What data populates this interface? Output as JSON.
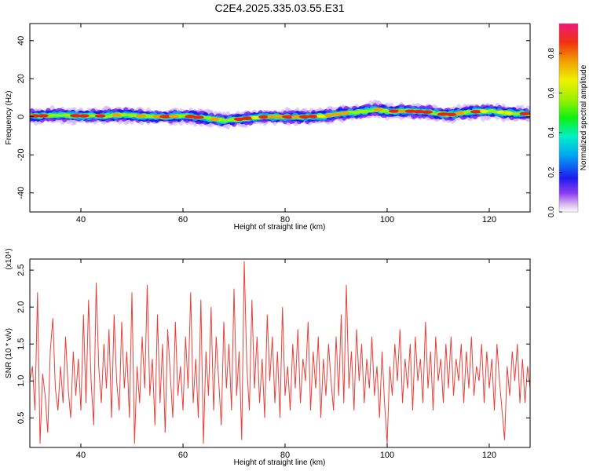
{
  "title": "C2E4.2025.335.03.55.E31",
  "chart_data": [
    {
      "type": "heatmap",
      "name": "spectrogram",
      "xlabel": "Height of straight line (km)",
      "ylabel": "Frequency (Hz)",
      "xlim": [
        30,
        128
      ],
      "ylim": [
        -50,
        49
      ],
      "xticks": [
        40,
        60,
        80,
        100,
        120
      ],
      "yticks": [
        -40,
        -20,
        0,
        20,
        40
      ],
      "colorbar": {
        "label": "Normalized spectral amplitude",
        "range": [
          0,
          0.95
        ],
        "ticks": [
          0.0,
          0.2,
          0.4,
          0.6,
          0.8
        ]
      },
      "ridge_center_hz": [
        [
          32,
          0.5
        ],
        [
          36,
          1.0
        ],
        [
          40,
          0.5
        ],
        [
          44,
          0.5
        ],
        [
          48,
          1.0
        ],
        [
          52,
          0.5
        ],
        [
          56,
          0.0
        ],
        [
          60,
          0.5
        ],
        [
          64,
          -0.5
        ],
        [
          68,
          -2.0
        ],
        [
          72,
          -1.0
        ],
        [
          76,
          0.0
        ],
        [
          80,
          0.0
        ],
        [
          84,
          0.0
        ],
        [
          88,
          0.5
        ],
        [
          92,
          2.0
        ],
        [
          96,
          3.0
        ],
        [
          98,
          4.0
        ],
        [
          100,
          3.0
        ],
        [
          104,
          3.0
        ],
        [
          108,
          2.5
        ],
        [
          112,
          1.0
        ],
        [
          116,
          2.5
        ],
        [
          120,
          3.0
        ],
        [
          124,
          2.0
        ],
        [
          128,
          1.5
        ]
      ]
    },
    {
      "type": "line",
      "name": "snr",
      "xlabel": "Height of straight line (km)",
      "ylabel": "SNR (10 * v/v)",
      "y_multiplier": "(x10⁴)",
      "xlim": [
        30,
        128
      ],
      "ylim": [
        0.1,
        2.65
      ],
      "xticks": [
        40,
        60,
        80,
        100,
        120
      ],
      "yticks": [
        0.5,
        1.0,
        1.5,
        2.0,
        2.5
      ],
      "series": [
        {
          "color": "#e8403a",
          "points": [
            [
              30.0,
              1.0
            ],
            [
              30.5,
              1.2
            ],
            [
              31.0,
              0.6
            ],
            [
              31.5,
              2.2
            ],
            [
              32.0,
              0.15
            ],
            [
              32.5,
              1.1
            ],
            [
              33.0,
              0.8
            ],
            [
              33.5,
              0.3
            ],
            [
              34.0,
              1.4
            ],
            [
              34.5,
              1.85
            ],
            [
              35.0,
              0.9
            ],
            [
              35.5,
              0.6
            ],
            [
              36.0,
              1.2
            ],
            [
              36.5,
              0.7
            ],
            [
              37.0,
              1.6
            ],
            [
              37.5,
              0.9
            ],
            [
              38.0,
              0.5
            ],
            [
              38.5,
              1.4
            ],
            [
              39.0,
              0.8
            ],
            [
              39.5,
              1.3
            ],
            [
              40.0,
              0.6
            ],
            [
              40.5,
              1.9
            ],
            [
              41.0,
              0.7
            ],
            [
              41.5,
              2.1
            ],
            [
              42.0,
              1.0
            ],
            [
              42.5,
              0.4
            ],
            [
              43.0,
              2.33
            ],
            [
              43.5,
              1.2
            ],
            [
              44.0,
              0.7
            ],
            [
              44.5,
              1.5
            ],
            [
              45.0,
              0.9
            ],
            [
              45.5,
              1.7
            ],
            [
              46.0,
              0.5
            ],
            [
              46.5,
              1.9
            ],
            [
              47.0,
              1.0
            ],
            [
              47.5,
              0.6
            ],
            [
              48.0,
              1.8
            ],
            [
              48.5,
              0.9
            ],
            [
              49.0,
              1.4
            ],
            [
              49.5,
              0.5
            ],
            [
              50.0,
              2.2
            ],
            [
              50.5,
              0.15
            ],
            [
              51.0,
              1.2
            ],
            [
              51.5,
              0.7
            ],
            [
              52.0,
              1.6
            ],
            [
              52.5,
              0.9
            ],
            [
              53.0,
              2.3
            ],
            [
              53.5,
              0.8
            ],
            [
              54.0,
              1.3
            ],
            [
              54.5,
              0.4
            ],
            [
              55.0,
              1.9
            ],
            [
              55.5,
              0.7
            ],
            [
              56.0,
              1.5
            ],
            [
              56.5,
              0.3
            ],
            [
              57.0,
              1.7
            ],
            [
              57.5,
              1.1
            ],
            [
              58.0,
              0.5
            ],
            [
              58.5,
              1.8
            ],
            [
              59.0,
              0.8
            ],
            [
              59.5,
              1.2
            ],
            [
              60.0,
              0.6
            ],
            [
              60.5,
              1.6
            ],
            [
              61.0,
              0.9
            ],
            [
              61.5,
              2.2
            ],
            [
              62.0,
              0.7
            ],
            [
              62.5,
              1.3
            ],
            [
              63.0,
              0.5
            ],
            [
              63.5,
              2.1
            ],
            [
              64.0,
              0.15
            ],
            [
              64.5,
              1.4
            ],
            [
              65.0,
              0.8
            ],
            [
              65.5,
              2.0
            ],
            [
              66.0,
              0.6
            ],
            [
              66.5,
              1.6
            ],
            [
              67.0,
              1.0
            ],
            [
              67.5,
              0.4
            ],
            [
              68.0,
              1.8
            ],
            [
              68.5,
              0.9
            ],
            [
              69.0,
              1.5
            ],
            [
              69.5,
              0.6
            ],
            [
              70.0,
              2.25
            ],
            [
              70.5,
              0.8
            ],
            [
              71.0,
              1.4
            ],
            [
              71.5,
              0.2
            ],
            [
              72.0,
              2.62
            ],
            [
              72.5,
              1.2
            ],
            [
              73.0,
              0.6
            ],
            [
              73.5,
              2.1
            ],
            [
              74.0,
              0.9
            ],
            [
              74.5,
              1.6
            ],
            [
              75.0,
              0.7
            ],
            [
              75.5,
              1.3
            ],
            [
              76.0,
              0.5
            ],
            [
              76.5,
              1.9
            ],
            [
              77.0,
              1.0
            ],
            [
              77.5,
              1.6
            ],
            [
              78.0,
              0.7
            ],
            [
              78.5,
              1.4
            ],
            [
              79.0,
              0.5
            ],
            [
              79.5,
              2.0
            ],
            [
              80.0,
              0.8
            ],
            [
              80.5,
              1.2
            ],
            [
              81.0,
              0.6
            ],
            [
              81.5,
              1.5
            ],
            [
              82.0,
              0.9
            ],
            [
              82.5,
              1.7
            ],
            [
              83.0,
              0.7
            ],
            [
              83.5,
              1.3
            ],
            [
              84.0,
              1.0
            ],
            [
              84.5,
              1.8
            ],
            [
              85.0,
              0.6
            ],
            [
              85.5,
              1.4
            ],
            [
              86.0,
              0.9
            ],
            [
              86.5,
              1.6
            ],
            [
              87.0,
              0.5
            ],
            [
              87.5,
              1.3
            ],
            [
              88.0,
              0.8
            ],
            [
              88.5,
              1.5
            ],
            [
              89.0,
              1.0
            ],
            [
              89.5,
              0.6
            ],
            [
              90.0,
              1.6
            ],
            [
              90.5,
              0.8
            ],
            [
              91.0,
              1.9
            ],
            [
              91.5,
              0.7
            ],
            [
              92.0,
              2.3
            ],
            [
              92.5,
              0.9
            ],
            [
              93.0,
              1.4
            ],
            [
              93.5,
              0.6
            ],
            [
              94.0,
              1.7
            ],
            [
              94.5,
              1.0
            ],
            [
              95.0,
              1.5
            ],
            [
              95.5,
              0.7
            ],
            [
              96.0,
              1.3
            ],
            [
              96.5,
              0.9
            ],
            [
              97.0,
              1.6
            ],
            [
              97.5,
              0.8
            ],
            [
              98.0,
              1.2
            ],
            [
              98.5,
              0.5
            ],
            [
              99.0,
              1.4
            ],
            [
              99.5,
              0.7
            ],
            [
              100.0,
              0.15
            ],
            [
              100.5,
              1.2
            ],
            [
              101.0,
              0.8
            ],
            [
              101.5,
              1.5
            ],
            [
              102.0,
              1.0
            ],
            [
              102.5,
              1.7
            ],
            [
              103.0,
              0.7
            ],
            [
              103.5,
              1.3
            ],
            [
              104.0,
              0.9
            ],
            [
              104.5,
              1.5
            ],
            [
              105.0,
              0.6
            ],
            [
              105.5,
              1.6
            ],
            [
              106.0,
              1.0
            ],
            [
              106.5,
              1.3
            ],
            [
              107.0,
              0.7
            ],
            [
              107.5,
              1.8
            ],
            [
              108.0,
              0.9
            ],
            [
              108.5,
              1.4
            ],
            [
              109.0,
              0.6
            ],
            [
              109.5,
              1.6
            ],
            [
              110.0,
              1.0
            ],
            [
              110.5,
              1.3
            ],
            [
              111.0,
              0.7
            ],
            [
              111.5,
              1.5
            ],
            [
              112.0,
              0.9
            ],
            [
              112.5,
              1.6
            ],
            [
              113.0,
              0.8
            ],
            [
              113.5,
              1.3
            ],
            [
              114.0,
              1.0
            ],
            [
              114.5,
              1.5
            ],
            [
              115.0,
              0.7
            ],
            [
              115.5,
              1.4
            ],
            [
              116.0,
              0.9
            ],
            [
              116.5,
              1.6
            ],
            [
              117.0,
              0.8
            ],
            [
              117.5,
              1.2
            ],
            [
              118.0,
              1.0
            ],
            [
              118.5,
              1.5
            ],
            [
              119.0,
              0.7
            ],
            [
              119.5,
              1.4
            ],
            [
              120.0,
              0.9
            ],
            [
              120.5,
              1.3
            ],
            [
              121.0,
              0.6
            ],
            [
              121.5,
              1.5
            ],
            [
              122.0,
              1.0
            ],
            [
              122.5,
              0.6
            ],
            [
              123.0,
              0.2
            ],
            [
              123.5,
              1.2
            ],
            [
              124.0,
              0.8
            ],
            [
              124.5,
              1.4
            ],
            [
              125.0,
              1.0
            ],
            [
              125.5,
              1.5
            ],
            [
              126.0,
              0.7
            ],
            [
              126.5,
              1.3
            ],
            [
              127.0,
              0.7
            ],
            [
              127.5,
              1.2
            ],
            [
              128.0,
              0.9
            ]
          ]
        }
      ]
    }
  ]
}
